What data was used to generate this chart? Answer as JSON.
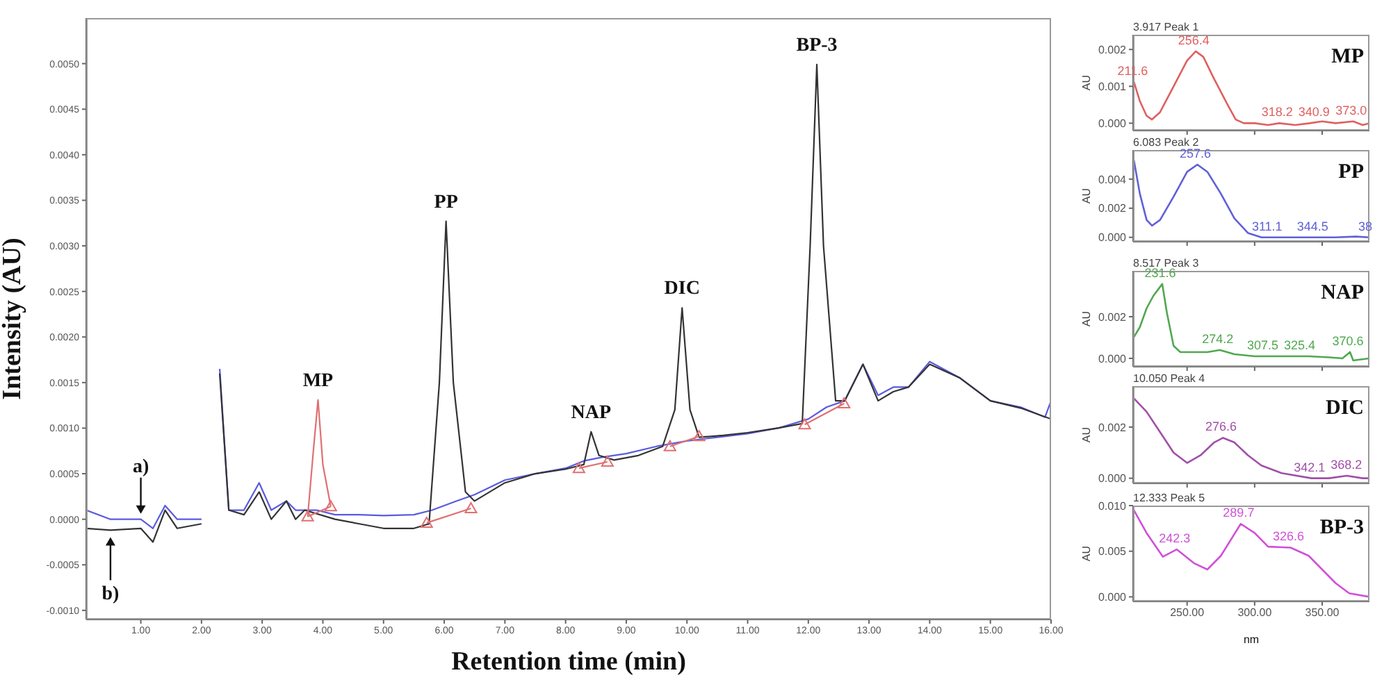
{
  "chart_data": [
    {
      "type": "line",
      "xlabel": "Retention time (min)",
      "ylabel": "Intensity (AU)",
      "marker": "none",
      "xlim": [
        0.1,
        16.0
      ],
      "xticks": [
        {
          "value": 1,
          "label": "1.00"
        },
        {
          "value": 2,
          "label": "2.00"
        },
        {
          "value": 3,
          "label": "3.00"
        },
        {
          "value": 4,
          "label": "4.00"
        },
        {
          "value": 5,
          "label": "5.00"
        },
        {
          "value": 6,
          "label": "6.00"
        },
        {
          "value": 7,
          "label": "7.00"
        },
        {
          "value": 8,
          "label": "8.00"
        },
        {
          "value": 9,
          "label": "9.00"
        },
        {
          "value": 10,
          "label": "10.00"
        },
        {
          "value": 11,
          "label": "11.00"
        },
        {
          "value": 12,
          "label": "12.00"
        },
        {
          "value": 13,
          "label": "13.00"
        },
        {
          "value": 14,
          "label": "14.00"
        },
        {
          "value": 15,
          "label": "15.00"
        },
        {
          "value": 16,
          "label": "16.00"
        }
      ],
      "ylim": [
        -0.0011,
        0.0055
      ],
      "yticks": [
        {
          "value": -0.001,
          "label": "-0.0010"
        },
        {
          "value": -0.0005,
          "label": "-0.0005"
        },
        {
          "value": 0,
          "label": "0.0000"
        },
        {
          "value": 0.0005,
          "label": "0.0005"
        },
        {
          "value": 0.001,
          "label": "0.0010"
        },
        {
          "value": 0.0015,
          "label": "0.0015"
        },
        {
          "value": 0.002,
          "label": "0.0020"
        },
        {
          "value": 0.0025,
          "label": "0.0025"
        },
        {
          "value": 0.003,
          "label": "0.0030"
        },
        {
          "value": 0.0035,
          "label": "0.0035"
        },
        {
          "value": 0.004,
          "label": "0.0040"
        },
        {
          "value": 0.0045,
          "label": "0.0045"
        },
        {
          "value": 0.005,
          "label": "0.0050"
        }
      ],
      "series": [
        {
          "name": "a)",
          "color": "#5a5ae0",
          "x": [
            0.1,
            0.5,
            1.0,
            1.2,
            1.4,
            1.6,
            2.0,
            2.05,
            2.17,
            2.3,
            2.45,
            2.7,
            2.95,
            3.15,
            3.4,
            3.55,
            3.9,
            4.2,
            4.6,
            5.0,
            5.5,
            5.8,
            6.2,
            6.5,
            7.0,
            7.5,
            8.0,
            8.3,
            8.6,
            9.0,
            9.5,
            10.0,
            10.5,
            11.0,
            11.5,
            12.0,
            12.3,
            12.6,
            12.9,
            13.15,
            13.4,
            13.65,
            14.0,
            14.5,
            15.0,
            15.5,
            15.9,
            16.0
          ],
          "values": [
            0.0001,
            0.0,
            0.0,
            -0.0001,
            0.00015,
            0.0,
            0.0,
            null,
            null,
            0.00165,
            0.0001,
            0.0001,
            0.0004,
            0.0001,
            0.0002,
            0.0001,
            0.0001,
            5e-05,
            5e-05,
            4e-05,
            5e-05,
            0.0001,
            0.0002,
            0.00027,
            0.00043,
            0.0005,
            0.00056,
            0.00064,
            0.00068,
            0.00072,
            0.0008,
            0.00086,
            0.0009,
            0.00094,
            0.001,
            0.0011,
            0.00123,
            0.0013,
            0.0017,
            0.00136,
            0.00145,
            0.00145,
            0.00173,
            0.00155,
            0.0013,
            0.00123,
            0.00112,
            0.0013
          ]
        },
        {
          "name": "b)",
          "color": "#333333",
          "x": [
            0.1,
            0.5,
            1.0,
            1.2,
            1.4,
            1.6,
            2.0,
            2.05,
            2.17,
            2.3,
            2.45,
            2.7,
            2.95,
            3.15,
            3.4,
            3.55,
            3.7,
            4.2,
            4.6,
            5.0,
            5.5,
            5.75,
            5.92,
            6.03,
            6.15,
            6.35,
            6.5,
            7.0,
            7.5,
            8.0,
            8.3,
            8.42,
            8.55,
            8.8,
            9.2,
            9.6,
            9.8,
            9.92,
            10.05,
            10.2,
            10.6,
            11.0,
            11.5,
            11.9,
            12.03,
            12.14,
            12.25,
            12.45,
            12.6,
            12.9,
            13.15,
            13.4,
            13.65,
            14.0,
            14.5,
            15.0,
            15.5,
            16.0
          ],
          "values": [
            -0.0001,
            -0.00012,
            -0.0001,
            -0.00025,
            0.0001,
            -0.0001,
            -5e-05,
            null,
            null,
            0.0016,
            0.0001,
            5e-05,
            0.0003,
            0.0,
            0.0002,
            0.0,
            0.0001,
            0.0,
            -5e-05,
            -0.0001,
            -0.0001,
            -5e-05,
            0.0015,
            0.00327,
            0.0015,
            0.0003,
            0.0002,
            0.0004,
            0.0005,
            0.00055,
            0.0006,
            0.00096,
            0.0007,
            0.00065,
            0.0007,
            0.0008,
            0.0012,
            0.00232,
            0.0012,
            0.0009,
            0.00092,
            0.00095,
            0.001,
            0.00105,
            0.003,
            0.00499,
            0.003,
            0.0013,
            0.0013,
            0.0017,
            0.0013,
            0.0014,
            0.00145,
            0.0017,
            0.00155,
            0.0013,
            0.00122,
            0.0011
          ]
        },
        {
          "color": "#e07070",
          "x": [
            3.75,
            3.85,
            3.92,
            4.0,
            4.13
          ],
          "values": [
            3e-05,
            0.0008,
            0.00131,
            0.0006,
            0.00014
          ]
        },
        {
          "color": "#e07070",
          "marker": "triangle",
          "x": [
            3.75,
            4.13,
            5.0,
            5.71,
            6.44,
            7.3,
            8.22,
            8.69,
            9.2,
            9.72,
            10.2,
            11.0,
            11.94,
            12.59
          ],
          "values": [
            3e-05,
            0.00014,
            null,
            -4e-05,
            0.00012,
            null,
            0.00056,
            0.00063,
            null,
            0.0008,
            0.00091,
            null,
            0.00104,
            0.00127
          ]
        }
      ],
      "annotations": [
        {
          "text": "MP",
          "x": 3.92,
          "y": 0.00131
        },
        {
          "text": "PP",
          "x": 6.03,
          "y": 0.00327
        },
        {
          "text": "NAP",
          "x": 8.42,
          "y": 0.00096
        },
        {
          "text": "DIC",
          "x": 9.92,
          "y": 0.00232
        },
        {
          "text": "BP-3",
          "x": 12.14,
          "y": 0.00499
        }
      ]
    },
    {
      "type": "line",
      "title": "3.917 Peak 1",
      "ylabel": "AU",
      "tick_labels": "y",
      "xlim": [
        210,
        385
      ],
      "xticks": [
        250,
        300,
        350
      ],
      "ylim": [
        -0.0002,
        0.0024
      ],
      "yticks": [
        {
          "value": 0,
          "label": "0.000"
        },
        {
          "value": 0.001,
          "label": "0.001"
        },
        {
          "value": 0.002,
          "label": "0.002"
        }
      ],
      "series": [
        {
          "color": "#e06060",
          "x": [
            210.6,
            215,
            220,
            224,
            230,
            240,
            250,
            256.4,
            262,
            270,
            280,
            286,
            292,
            300,
            310,
            318.2,
            330,
            340.9,
            350,
            360,
            373,
            380,
            385
          ],
          "values": [
            0.00112,
            0.0006,
            0.0002,
            0.0001,
            0.0003,
            0.001,
            0.0017,
            0.00195,
            0.0018,
            0.0012,
            0.0005,
            0.0001,
            0.0,
            0.0,
            -5e-05,
            0.0,
            -5e-05,
            0.0,
            5e-05,
            0.0,
            5e-05,
            -5e-05,
            0.0
          ]
        }
      ],
      "annotations": [
        "MP",
        {
          "text": "211.6",
          "x": 211.6,
          "y": 0.00112
        },
        {
          "text": "256.4",
          "x": 256.4,
          "y": 0.00195
        },
        {
          "text": "318.2",
          "x": 318.2,
          "y": 0.0
        },
        {
          "text": "340.9",
          "x": 340.9,
          "y": 0.0
        },
        {
          "text": "373.0",
          "x": 373.0,
          "y": 5e-05
        }
      ]
    },
    {
      "type": "line",
      "title": "6.083 Peak 2",
      "ylabel": "AU",
      "tick_labels": "y",
      "xlim": [
        210,
        385
      ],
      "xticks": [
        250,
        300,
        350
      ],
      "ylim": [
        -0.0003,
        0.006
      ],
      "yticks": [
        {
          "value": 0,
          "label": "0.000"
        },
        {
          "value": 0.002,
          "label": "0.002"
        },
        {
          "value": 0.004,
          "label": "0.004"
        }
      ],
      "series": [
        {
          "color": "#6060d8",
          "x": [
            210.6,
            215,
            220,
            224,
            230,
            240,
            250,
            257.6,
            265,
            275,
            285,
            295,
            305,
            311.1,
            325,
            344.5,
            360,
            375,
            385
          ],
          "values": [
            0.0053,
            0.003,
            0.0012,
            0.0008,
            0.0012,
            0.0028,
            0.0045,
            0.005,
            0.0045,
            0.003,
            0.0013,
            0.0003,
            0.0,
            0.0,
            0.0,
            0.0,
            0.0,
            5e-05,
            0.0
          ]
        }
      ],
      "annotations": [
        "PP",
        {
          "text": "257.6",
          "x": 257.6,
          "y": 0.005
        },
        {
          "text": "311.1",
          "x": 311.1,
          "y": 0.0
        },
        {
          "text": "344.5",
          "x": 344.5,
          "y": 0.0
        },
        {
          "text": "38",
          "x": 382,
          "y": 0.0
        }
      ]
    },
    {
      "type": "line",
      "title": "8.517 Peak 3",
      "ylabel": "AU",
      "tick_labels": "y",
      "xlim": [
        210,
        385
      ],
      "xticks": [
        250,
        300,
        350
      ],
      "ylim": [
        -0.0004,
        0.0042
      ],
      "yticks": [
        {
          "value": 0,
          "label": "0.000"
        },
        {
          "value": 0.002,
          "label": "0.002"
        }
      ],
      "series": [
        {
          "color": "#50a850",
          "x": [
            210.6,
            215,
            220,
            225,
            231.6,
            235,
            240,
            245,
            255,
            265,
            274.2,
            285,
            300,
            307.5,
            325.4,
            340,
            355,
            365,
            370.6,
            373,
            385
          ],
          "values": [
            0.00102,
            0.0015,
            0.0024,
            0.003,
            0.00357,
            0.0022,
            0.0006,
            0.0003,
            0.0003,
            0.0003,
            0.0004,
            0.0002,
            0.0001,
            0.0001,
            0.0001,
            0.0001,
            5e-05,
            0.0,
            0.0003,
            -0.0001,
            0.0
          ]
        }
      ],
      "annotations": [
        "NAP",
        {
          "text": "231.6",
          "x": 231.6,
          "y": 0.00357
        },
        {
          "text": "274.2",
          "x": 274.2,
          "y": 0.0004
        },
        {
          "text": "307.5",
          "x": 307.5,
          "y": 0.0001
        },
        {
          "text": "325.4",
          "x": 325.4,
          "y": 0.0001
        },
        {
          "text": "370.6",
          "x": 370.6,
          "y": 0.0003
        }
      ]
    },
    {
      "type": "line",
      "title": "10.050 Peak 4",
      "ylabel": "AU",
      "tick_labels": "y",
      "xlim": [
        210,
        385
      ],
      "xticks": [
        250,
        300,
        350
      ],
      "ylim": [
        -0.0002,
        0.0036
      ],
      "yticks": [
        {
          "value": 0,
          "label": "0.000"
        },
        {
          "value": 0.002,
          "label": "0.002"
        }
      ],
      "series": [
        {
          "color": "#a050a8",
          "x": [
            210.6,
            220,
            230,
            240,
            250,
            260,
            270,
            276.6,
            285,
            295,
            305,
            320,
            342.1,
            355,
            368.2,
            380,
            385
          ],
          "values": [
            0.00312,
            0.0026,
            0.0018,
            0.001,
            0.0006,
            0.0009,
            0.0014,
            0.00158,
            0.0014,
            0.0009,
            0.0005,
            0.0002,
            0.0,
            0.0,
            0.0001,
            0.0,
            0.0
          ]
        }
      ],
      "annotations": [
        "DIC",
        {
          "text": "276.6",
          "x": 276.6,
          "y": 0.00158
        },
        {
          "text": "342.1",
          "x": 342.1,
          "y": 0.0
        },
        {
          "text": "368.2",
          "x": 368.2,
          "y": 0.0001
        }
      ]
    },
    {
      "type": "line",
      "title": "12.333 Peak 5",
      "ylabel": "AU",
      "xlabel": "nm",
      "xlim": [
        210,
        385
      ],
      "xticks": [
        {
          "value": 250,
          "label": "250.00"
        },
        {
          "value": 300,
          "label": "300.00"
        },
        {
          "value": 350,
          "label": "350.00"
        }
      ],
      "ylim": [
        -0.0005,
        0.01
      ],
      "yticks": [
        {
          "value": 0,
          "label": "0.000"
        },
        {
          "value": 0.005,
          "label": "0.005"
        },
        {
          "value": 0.01,
          "label": "0.010"
        }
      ],
      "series": [
        {
          "color": "#d050d8",
          "x": [
            210.6,
            220,
            232,
            242.3,
            255,
            265,
            275,
            289.7,
            300,
            310,
            326.6,
            340,
            350,
            360,
            370,
            385
          ],
          "values": [
            0.0095,
            0.007,
            0.0044,
            0.0052,
            0.0037,
            0.003,
            0.0045,
            0.008,
            0.007,
            0.0055,
            0.0054,
            0.0045,
            0.003,
            0.0015,
            0.0004,
            0.0
          ]
        }
      ],
      "annotations": [
        "BP-3",
        {
          "text": "242.3",
          "x": 242.3,
          "y": 0.0052
        },
        {
          "text": "289.7",
          "x": 289.7,
          "y": 0.008
        },
        {
          "text": "326.6",
          "x": 326.6,
          "y": 0.0054
        }
      ]
    }
  ]
}
